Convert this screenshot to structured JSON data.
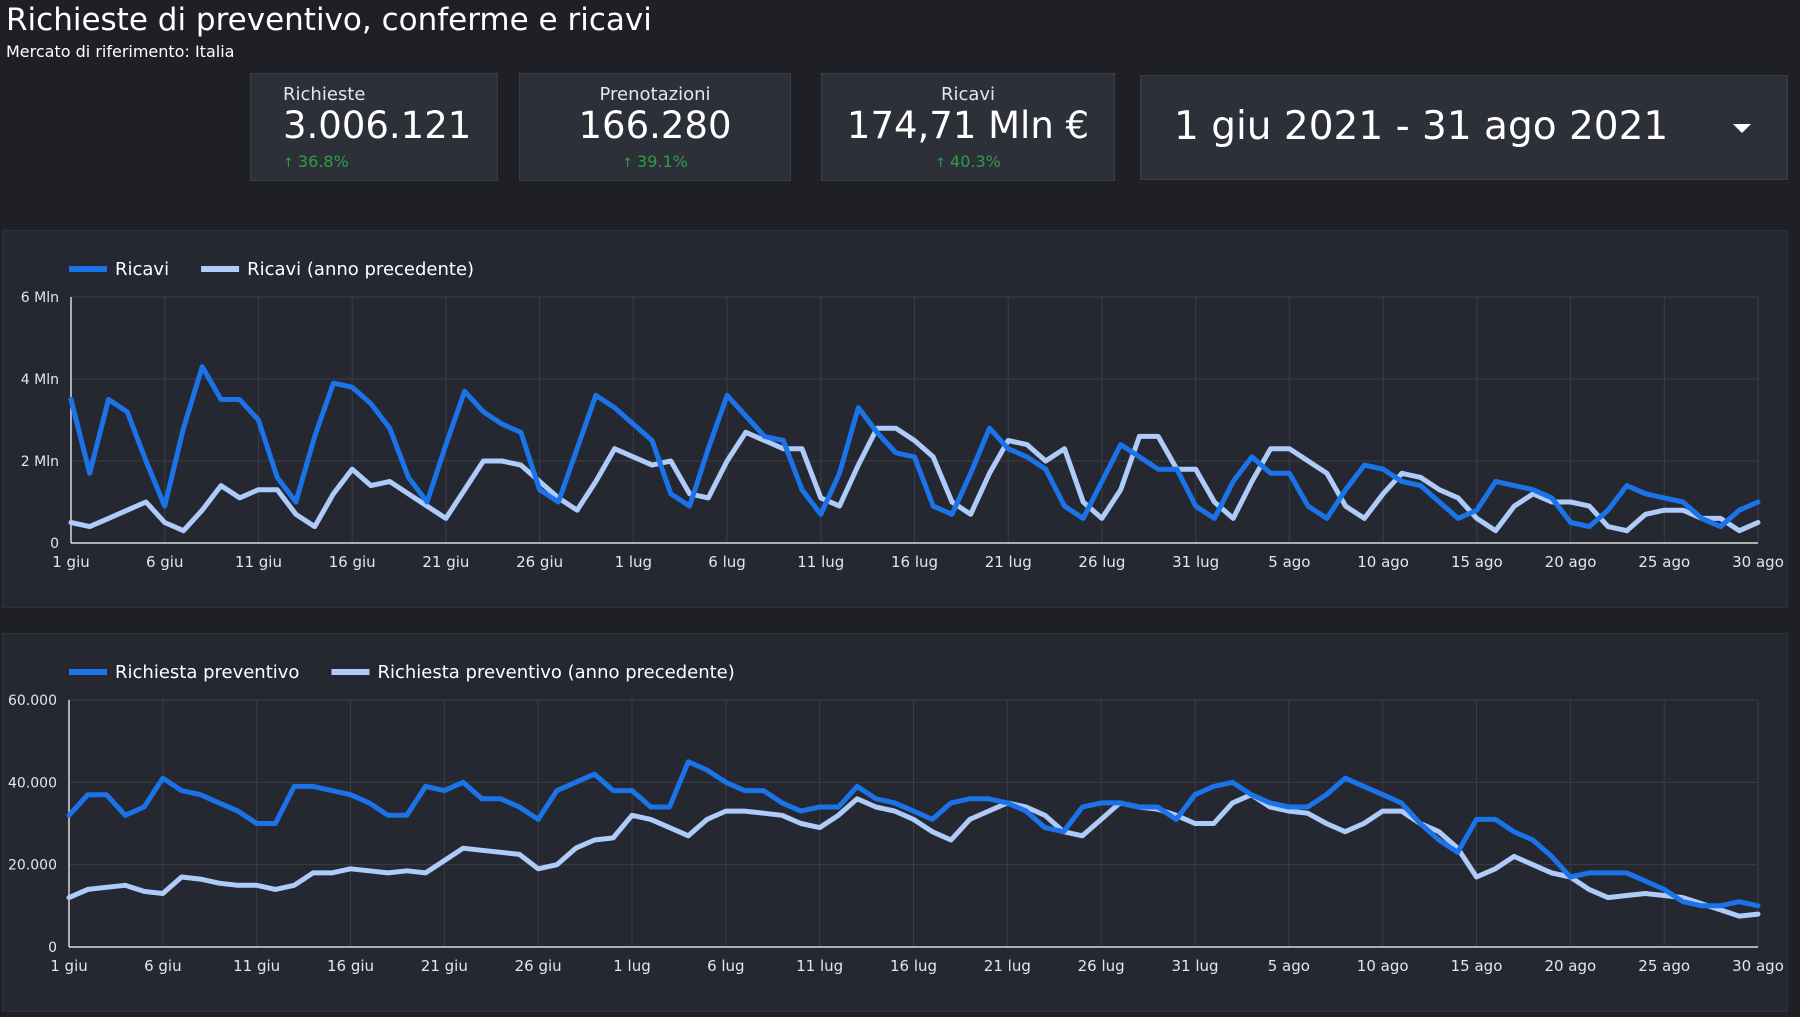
{
  "header": {
    "title": "Richieste di preventivo, conferme e ricavi",
    "subtitle": "Mercato di riferimento: Italia"
  },
  "kpis": [
    {
      "label": "Richieste",
      "value": "3.006.121",
      "delta": "36.8%",
      "delta_direction": "up"
    },
    {
      "label": "Prenotazioni",
      "value": "166.280",
      "delta": "39.1%",
      "delta_direction": "up"
    },
    {
      "label": "Ricavi",
      "value": "174,71 Mln €",
      "delta": "40.3%",
      "delta_direction": "up"
    }
  ],
  "date_range": {
    "label": "1 giu 2021 - 31 ago 2021",
    "icon": "chevron-down-icon"
  },
  "colors": {
    "background": "#1f2025",
    "card": "#2e3039",
    "panel": "#262831",
    "grid": "#3a3d48",
    "current": "#1a73e8",
    "previous": "#aecbfa",
    "positive": "#2e9e43"
  },
  "chart_data": [
    {
      "type": "line",
      "ylim": [
        0,
        6000000
      ],
      "yticks": [
        {
          "value": 0,
          "label": "0"
        },
        {
          "value": 2000000,
          "label": "2 Mln"
        },
        {
          "value": 4000000,
          "label": "4 Mln"
        },
        {
          "value": 6000000,
          "label": "6 Mln"
        }
      ],
      "xticks": [
        "1 giu",
        "6 giu",
        "11 giu",
        "16 giu",
        "21 giu",
        "26 giu",
        "1 lug",
        "6 lug",
        "11 lug",
        "16 lug",
        "21 lug",
        "26 lug",
        "31 lug",
        "5 ago",
        "10 ago",
        "15 ago",
        "20 ago",
        "25 ago",
        "30 ago"
      ],
      "x_start": "2021-06-01",
      "x_end": "2021-08-31",
      "legend_position": "top-left",
      "grid": true,
      "series": [
        {
          "name": "Ricavi",
          "color": "#1a73e8",
          "values": [
            3500000,
            1700000,
            3500000,
            3200000,
            2000000,
            900000,
            2800000,
            4300000,
            3500000,
            3500000,
            3000000,
            1600000,
            1000000,
            2600000,
            3900000,
            3800000,
            3400000,
            2800000,
            1600000,
            1000000,
            2400000,
            3700000,
            3200000,
            2900000,
            2700000,
            1300000,
            1000000,
            2300000,
            3600000,
            3300000,
            2900000,
            2500000,
            1200000,
            900000,
            2300000,
            3600000,
            3100000,
            2600000,
            2500000,
            1300000,
            700000,
            1700000,
            3300000,
            2700000,
            2200000,
            2100000,
            900000,
            700000,
            1700000,
            2800000,
            2300000,
            2100000,
            1800000,
            900000,
            600000,
            1500000,
            2400000,
            2100000,
            1800000,
            1800000,
            900000,
            600000,
            1500000,
            2100000,
            1700000,
            1700000,
            900000,
            600000,
            1300000,
            1900000,
            1800000,
            1500000,
            1400000,
            1000000,
            600000,
            800000,
            1500000,
            1400000,
            1300000,
            1100000,
            500000,
            400000,
            800000,
            1400000,
            1200000,
            1100000,
            1000000,
            600000,
            400000,
            800000,
            1000000
          ]
        },
        {
          "name": "Ricavi (anno precedente)",
          "color": "#aecbfa",
          "values": [
            500000,
            400000,
            600000,
            800000,
            1000000,
            500000,
            300000,
            800000,
            1400000,
            1100000,
            1300000,
            1300000,
            700000,
            400000,
            1200000,
            1800000,
            1400000,
            1500000,
            1200000,
            900000,
            600000,
            1300000,
            2000000,
            2000000,
            1900000,
            1500000,
            1100000,
            800000,
            1500000,
            2300000,
            2100000,
            1900000,
            2000000,
            1200000,
            1100000,
            2000000,
            2700000,
            2500000,
            2300000,
            2300000,
            1100000,
            900000,
            1900000,
            2800000,
            2800000,
            2500000,
            2100000,
            1000000,
            700000,
            1700000,
            2500000,
            2400000,
            2000000,
            2300000,
            1000000,
            600000,
            1300000,
            2600000,
            2600000,
            1800000,
            1800000,
            1000000,
            600000,
            1500000,
            2300000,
            2300000,
            2000000,
            1700000,
            900000,
            600000,
            1200000,
            1700000,
            1600000,
            1300000,
            1100000,
            600000,
            300000,
            900000,
            1200000,
            1000000,
            1000000,
            900000,
            400000,
            300000,
            700000,
            800000,
            800000,
            600000,
            600000,
            300000,
            500000
          ]
        }
      ]
    },
    {
      "type": "line",
      "ylim": [
        0,
        60000
      ],
      "yticks": [
        {
          "value": 0,
          "label": "0"
        },
        {
          "value": 20000,
          "label": "20.000"
        },
        {
          "value": 40000,
          "label": "40.000"
        },
        {
          "value": 60000,
          "label": "60.000"
        }
      ],
      "xticks": [
        "1 giu",
        "6 giu",
        "11 giu",
        "16 giu",
        "21 giu",
        "26 giu",
        "1 lug",
        "6 lug",
        "11 lug",
        "16 lug",
        "21 lug",
        "26 lug",
        "31 lug",
        "5 ago",
        "10 ago",
        "15 ago",
        "20 ago",
        "25 ago",
        "30 ago"
      ],
      "x_start": "2021-06-01",
      "x_end": "2021-08-31",
      "legend_position": "top-left",
      "grid": true,
      "series": [
        {
          "name": "Richiesta preventivo",
          "color": "#1a73e8",
          "values": [
            32000,
            37000,
            37000,
            32000,
            34000,
            41000,
            38000,
            37000,
            35000,
            33000,
            30000,
            30000,
            39000,
            39000,
            38000,
            37000,
            35000,
            32000,
            32000,
            39000,
            38000,
            40000,
            36000,
            36000,
            34000,
            31000,
            38000,
            40000,
            42000,
            38000,
            38000,
            34000,
            34000,
            45000,
            43000,
            40000,
            38000,
            38000,
            35000,
            33000,
            34000,
            34000,
            39000,
            36000,
            35000,
            33000,
            31000,
            35000,
            36000,
            36000,
            35000,
            33000,
            29000,
            28000,
            34000,
            35000,
            35000,
            34000,
            34000,
            31000,
            37000,
            39000,
            40000,
            37000,
            35000,
            34000,
            34000,
            37000,
            41000,
            39000,
            37000,
            35000,
            30000,
            26000,
            23000,
            31000,
            31000,
            28000,
            26000,
            22000,
            17000,
            18000,
            18000,
            18000,
            16000,
            14000,
            11000,
            10000,
            10000,
            11000,
            10000
          ]
        },
        {
          "name": "Richiesta preventivo (anno precedente)",
          "color": "#aecbfa",
          "values": [
            12000,
            14000,
            14500,
            15000,
            13500,
            13000,
            17000,
            16500,
            15500,
            15000,
            15000,
            14000,
            15000,
            18000,
            18000,
            19000,
            18500,
            18000,
            18500,
            18000,
            21000,
            24000,
            23500,
            23000,
            22500,
            19000,
            20000,
            24000,
            26000,
            26500,
            32000,
            31000,
            29000,
            27000,
            31000,
            33000,
            33000,
            32500,
            32000,
            30000,
            29000,
            32000,
            36000,
            34000,
            33000,
            31000,
            28000,
            26000,
            31000,
            33000,
            35000,
            34000,
            32000,
            28000,
            27000,
            31000,
            35000,
            34000,
            33500,
            32000,
            30000,
            30000,
            35000,
            37000,
            34000,
            33000,
            32500,
            30000,
            28000,
            30000,
            33000,
            33000,
            30000,
            28000,
            24000,
            17000,
            19000,
            22000,
            20000,
            18000,
            17000,
            14000,
            12000,
            12500,
            13000,
            12500,
            12000,
            10500,
            9000,
            7500,
            8000
          ]
        }
      ]
    }
  ]
}
